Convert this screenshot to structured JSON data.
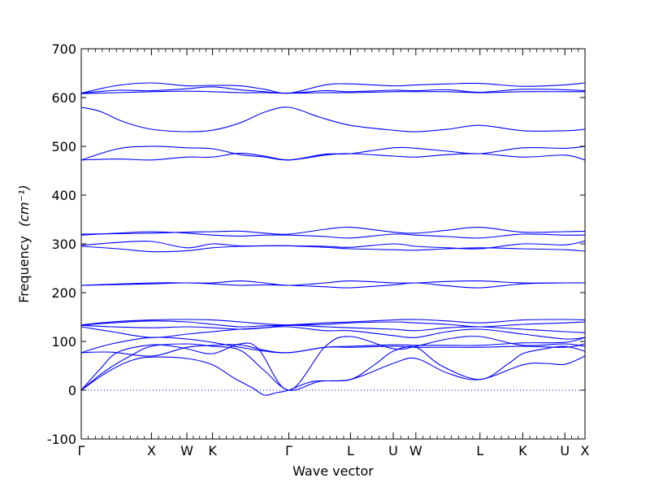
{
  "chart_data": {
    "type": "line",
    "title": "",
    "xlabel": "Wave vector",
    "ylabel": "Frequency",
    "ylabel_unit": "(cm⁻¹)",
    "ylim": [
      -100,
      700
    ],
    "yticks": [
      -100,
      0,
      100,
      200,
      300,
      400,
      500,
      600,
      700
    ],
    "xlim": [
      0,
      8.25
    ],
    "zero_line": true,
    "line_color": "#0000ff",
    "grid": false,
    "legend": "none",
    "high_symmetry_points": [
      {
        "label": "Γ",
        "x": 0.0
      },
      {
        "label": "X",
        "x": 1.15
      },
      {
        "label": "W",
        "x": 1.73
      },
      {
        "label": "K",
        "x": 2.15
      },
      {
        "label": "Γ",
        "x": 3.4
      },
      {
        "label": "L",
        "x": 4.41
      },
      {
        "label": "U",
        "x": 5.11
      },
      {
        "label": "W",
        "x": 5.48
      },
      {
        "label": "L",
        "x": 6.53
      },
      {
        "label": "K",
        "x": 7.23
      },
      {
        "label": "U",
        "x": 7.92
      },
      {
        "label": "X",
        "x": 8.25
      }
    ],
    "bands": [
      {
        "x": [
          0,
          0.4,
          0.8,
          1.15,
          1.73,
          2.15,
          2.5,
          2.8,
          3.0,
          3.2,
          3.4,
          3.8,
          4.41,
          5.11,
          5.48,
          6.0,
          6.53,
          7.23,
          7.6,
          7.92,
          8.25
        ],
        "y": [
          0,
          35,
          60,
          68,
          65,
          52,
          25,
          5,
          -10,
          -5,
          0,
          18,
          22,
          55,
          65,
          35,
          22,
          52,
          55,
          53,
          70
        ]
      },
      {
        "x": [
          0,
          0.4,
          0.8,
          1.15,
          1.73,
          2.15,
          2.6,
          3.0,
          3.4,
          3.9,
          4.41,
          4.8,
          5.11,
          5.48,
          5.9,
          6.53,
          7.0,
          7.23,
          7.6,
          7.92,
          8.25
        ],
        "y": [
          0,
          40,
          70,
          90,
          95,
          90,
          82,
          40,
          0,
          18,
          22,
          52,
          80,
          88,
          50,
          22,
          55,
          75,
          85,
          90,
          80
        ]
      },
      {
        "x": [
          0,
          0.3,
          0.6,
          1.15,
          1.5,
          1.73,
          2.15,
          2.6,
          2.9,
          3.4,
          4.0,
          4.41,
          5.11,
          5.48,
          6.0,
          6.53,
          7.23,
          7.92,
          8.25
        ],
        "y": [
          0,
          42,
          78,
          93,
          90,
          85,
          75,
          95,
          85,
          0,
          90,
          110,
          85,
          90,
          105,
          110,
          92,
          95,
          90
        ]
      },
      {
        "x": [
          0,
          0.5,
          1.15,
          1.73,
          2.15,
          2.6,
          3.0,
          3.4,
          4.0,
          4.41,
          5.11,
          5.48,
          6.0,
          6.53,
          7.23,
          7.92,
          8.25
        ],
        "y": [
          77,
          78,
          70,
          88,
          92,
          93,
          82,
          77,
          88,
          88,
          90,
          88,
          88,
          88,
          90,
          88,
          95
        ]
      },
      {
        "x": [
          0,
          0.5,
          1.15,
          1.73,
          2.15,
          2.6,
          3.0,
          3.4,
          4.0,
          4.41,
          5.11,
          5.48,
          6.0,
          6.53,
          7.23,
          7.92,
          8.25
        ],
        "y": [
          77,
          95,
          108,
          105,
          98,
          88,
          80,
          77,
          88,
          90,
          93,
          92,
          92,
          92,
          97,
          98,
          108
        ]
      },
      {
        "x": [
          0,
          0.5,
          1.15,
          1.73,
          2.15,
          2.6,
          3.0,
          3.4,
          4.0,
          4.41,
          5.11,
          5.48,
          6.0,
          6.53,
          7.23,
          7.92,
          8.25
        ],
        "y": [
          130,
          120,
          108,
          115,
          120,
          125,
          128,
          130,
          122,
          122,
          112,
          108,
          120,
          125,
          115,
          105,
          108
        ]
      },
      {
        "x": [
          0,
          0.5,
          1.15,
          1.73,
          2.15,
          2.6,
          3.0,
          3.4,
          4.0,
          4.41,
          5.11,
          5.48,
          6.0,
          6.53,
          7.23,
          7.92,
          8.25
        ],
        "y": [
          133,
          130,
          128,
          130,
          128,
          125,
          128,
          133,
          130,
          128,
          125,
          122,
          128,
          130,
          125,
          120,
          118
        ]
      },
      {
        "x": [
          0,
          0.5,
          1.15,
          1.73,
          2.15,
          2.6,
          3.0,
          3.4,
          4.0,
          4.41,
          5.11,
          5.48,
          6.0,
          6.53,
          7.23,
          7.92,
          8.25
        ],
        "y": [
          133,
          138,
          142,
          140,
          135,
          130,
          132,
          133,
          135,
          138,
          140,
          138,
          135,
          130,
          135,
          138,
          140
        ]
      },
      {
        "x": [
          0,
          0.5,
          1.15,
          1.73,
          2.15,
          2.6,
          3.0,
          3.4,
          4.0,
          4.41,
          5.11,
          5.48,
          6.0,
          6.53,
          7.23,
          7.92,
          8.25
        ],
        "y": [
          134,
          140,
          144,
          145,
          144,
          140,
          136,
          134,
          138,
          140,
          144,
          145,
          142,
          138,
          144,
          145,
          144
        ]
      },
      {
        "x": [
          0,
          1.15,
          1.73,
          2.15,
          2.6,
          3.0,
          3.4,
          4.0,
          4.41,
          5.11,
          5.48,
          6.0,
          6.53,
          7.23,
          7.92,
          8.25
        ],
        "y": [
          215,
          218,
          220,
          218,
          215,
          216,
          215,
          212,
          210,
          216,
          220,
          214,
          210,
          218,
          220,
          220
        ]
      },
      {
        "x": [
          0,
          1.15,
          1.73,
          2.15,
          2.6,
          3.0,
          3.4,
          4.0,
          4.41,
          5.11,
          5.48,
          6.0,
          6.53,
          7.23,
          7.92,
          8.25
        ],
        "y": [
          215,
          220,
          220,
          220,
          224,
          220,
          215,
          220,
          224,
          220,
          220,
          223,
          224,
          220,
          220,
          220
        ]
      },
      {
        "x": [
          0,
          0.6,
          1.15,
          1.73,
          2.15,
          2.6,
          3.0,
          3.4,
          4.0,
          4.41,
          5.11,
          5.48,
          6.0,
          6.53,
          7.23,
          7.92,
          8.25
        ],
        "y": [
          297,
          303,
          305,
          292,
          300,
          296,
          296,
          296,
          295,
          293,
          300,
          295,
          292,
          290,
          300,
          298,
          306
        ]
      },
      {
        "x": [
          0,
          0.6,
          1.15,
          1.73,
          2.15,
          2.6,
          3.0,
          3.4,
          4.0,
          4.41,
          5.11,
          5.48,
          6.0,
          6.53,
          7.23,
          7.92,
          8.25
        ],
        "y": [
          295,
          290,
          284,
          286,
          292,
          295,
          296,
          296,
          293,
          290,
          288,
          287,
          290,
          292,
          290,
          288,
          285
        ]
      },
      {
        "x": [
          0,
          0.6,
          1.15,
          1.73,
          2.15,
          2.6,
          3.0,
          3.4,
          4.0,
          4.41,
          5.11,
          5.48,
          6.0,
          6.53,
          7.23,
          7.92,
          8.25
        ],
        "y": [
          318,
          322,
          325,
          322,
          318,
          316,
          318,
          318,
          315,
          312,
          320,
          318,
          315,
          312,
          320,
          318,
          318
        ]
      },
      {
        "x": [
          0,
          0.6,
          1.15,
          1.73,
          2.15,
          2.6,
          3.0,
          3.4,
          4.0,
          4.41,
          5.11,
          5.48,
          6.0,
          6.53,
          7.23,
          7.92,
          8.25
        ],
        "y": [
          320,
          321,
          322,
          324,
          325,
          326,
          322,
          320,
          330,
          334,
          324,
          322,
          328,
          334,
          324,
          325,
          326
        ]
      },
      {
        "x": [
          0,
          0.6,
          1.15,
          1.73,
          2.15,
          2.6,
          3.0,
          3.4,
          4.0,
          4.41,
          5.11,
          5.48,
          6.0,
          6.53,
          7.23,
          7.92,
          8.25
        ],
        "y": [
          472,
          474,
          472,
          478,
          478,
          486,
          480,
          472,
          482,
          485,
          480,
          478,
          483,
          485,
          478,
          482,
          472
        ]
      },
      {
        "x": [
          0,
          0.6,
          1.15,
          1.73,
          2.15,
          2.6,
          3.0,
          3.4,
          4.0,
          4.41,
          5.11,
          5.48,
          6.0,
          6.53,
          7.23,
          7.92,
          8.25
        ],
        "y": [
          472,
          495,
          500,
          497,
          495,
          483,
          478,
          472,
          484,
          485,
          497,
          496,
          490,
          485,
          497,
          496,
          500
        ]
      },
      {
        "x": [
          0,
          0.3,
          0.7,
          1.15,
          1.73,
          2.15,
          2.6,
          3.0,
          3.4,
          3.9,
          4.41,
          5.11,
          5.48,
          6.0,
          6.53,
          7.23,
          7.92,
          8.25
        ],
        "y": [
          580,
          572,
          550,
          535,
          530,
          533,
          548,
          570,
          580,
          560,
          543,
          533,
          530,
          535,
          543,
          532,
          532,
          535
        ]
      },
      {
        "x": [
          0,
          0.6,
          1.15,
          1.73,
          2.15,
          2.6,
          3.0,
          3.4,
          4.0,
          4.41,
          5.11,
          5.48,
          6.0,
          6.53,
          7.23,
          7.92,
          8.25
        ],
        "y": [
          608,
          610,
          612,
          613,
          612,
          610,
          610,
          609,
          610,
          610,
          612,
          612,
          612,
          610,
          612,
          612,
          612
        ]
      },
      {
        "x": [
          0,
          0.6,
          1.15,
          1.73,
          2.15,
          2.6,
          3.0,
          3.4,
          4.0,
          4.41,
          5.11,
          5.48,
          6.0,
          6.53,
          7.23,
          7.92,
          8.25
        ],
        "y": [
          609,
          615,
          614,
          618,
          622,
          616,
          612,
          609,
          614,
          612,
          615,
          614,
          616,
          611,
          617,
          616,
          614
        ]
      },
      {
        "x": [
          0,
          0.6,
          1.15,
          1.73,
          2.15,
          2.6,
          3.0,
          3.4,
          4.0,
          4.41,
          5.11,
          5.48,
          6.0,
          6.53,
          7.23,
          7.92,
          8.25
        ],
        "y": [
          609,
          625,
          630,
          624,
          625,
          624,
          617,
          609,
          626,
          628,
          624,
          626,
          628,
          629,
          623,
          626,
          630
        ]
      }
    ]
  }
}
